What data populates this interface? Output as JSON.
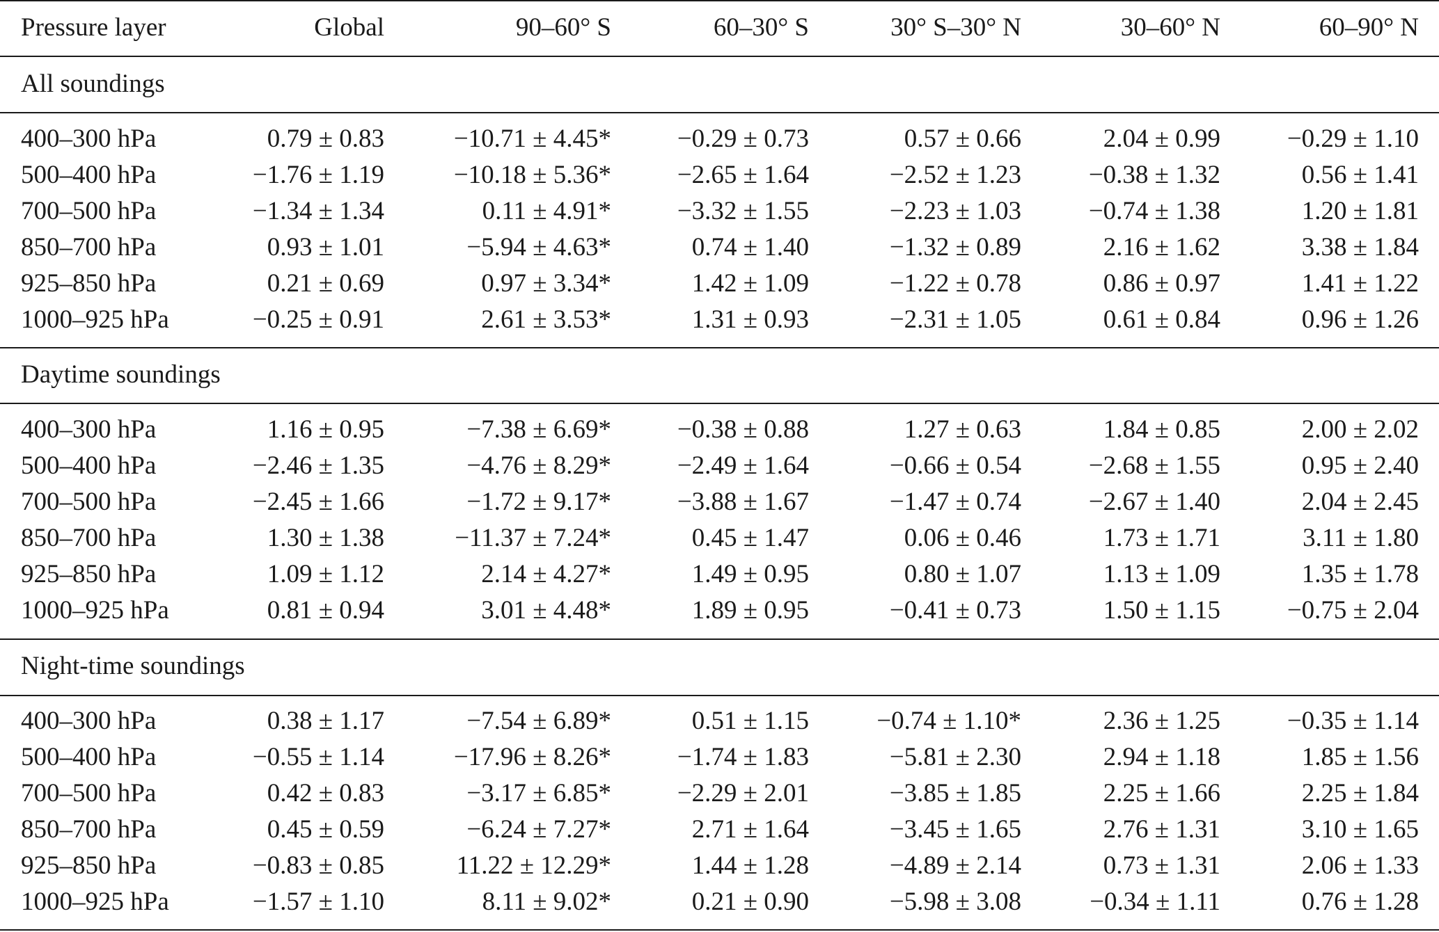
{
  "table": {
    "headers": [
      "Pressure layer",
      "Global",
      "90–60° S",
      "60–30° S",
      "30° S–30° N",
      "30–60° N",
      "60–90° N"
    ],
    "sections": [
      {
        "title": "All soundings",
        "rows": [
          [
            "400–300 hPa",
            "0.79 ± 0.83",
            "−10.71 ± 4.45*",
            "−0.29 ± 0.73",
            "0.57 ± 0.66",
            "2.04 ± 0.99",
            "−0.29 ± 1.10"
          ],
          [
            "500–400 hPa",
            "−1.76 ± 1.19",
            "−10.18 ± 5.36*",
            "−2.65 ± 1.64",
            "−2.52 ± 1.23",
            "−0.38 ± 1.32",
            "0.56 ± 1.41"
          ],
          [
            "700–500 hPa",
            "−1.34 ± 1.34",
            "0.11 ± 4.91*",
            "−3.32 ± 1.55",
            "−2.23 ± 1.03",
            "−0.74 ± 1.38",
            "1.20 ± 1.81"
          ],
          [
            "850–700 hPa",
            "0.93 ± 1.01",
            "−5.94 ± 4.63*",
            "0.74 ± 1.40",
            "−1.32 ± 0.89",
            "2.16 ± 1.62",
            "3.38 ± 1.84"
          ],
          [
            "925–850 hPa",
            "0.21 ± 0.69",
            "0.97 ± 3.34*",
            "1.42 ± 1.09",
            "−1.22 ± 0.78",
            "0.86 ± 0.97",
            "1.41 ± 1.22"
          ],
          [
            "1000–925 hPa",
            "−0.25 ± 0.91",
            "2.61 ± 3.53*",
            "1.31 ± 0.93",
            "−2.31 ± 1.05",
            "0.61 ± 0.84",
            "0.96 ± 1.26"
          ]
        ]
      },
      {
        "title": "Daytime soundings",
        "rows": [
          [
            "400–300 hPa",
            "1.16 ± 0.95",
            "−7.38 ± 6.69*",
            "−0.38 ± 0.88",
            "1.27 ± 0.63",
            "1.84 ± 0.85",
            "2.00 ± 2.02"
          ],
          [
            "500–400 hPa",
            "−2.46 ± 1.35",
            "−4.76 ± 8.29*",
            "−2.49 ± 1.64",
            "−0.66 ± 0.54",
            "−2.68 ± 1.55",
            "0.95 ± 2.40"
          ],
          [
            "700–500 hPa",
            "−2.45 ± 1.66",
            "−1.72 ± 9.17*",
            "−3.88 ± 1.67",
            "−1.47 ± 0.74",
            "−2.67 ± 1.40",
            "2.04 ± 2.45"
          ],
          [
            "850–700 hPa",
            "1.30 ± 1.38",
            "−11.37 ± 7.24*",
            "0.45 ± 1.47",
            "0.06 ± 0.46",
            "1.73 ± 1.71",
            "3.11 ± 1.80"
          ],
          [
            "925–850 hPa",
            "1.09 ± 1.12",
            "2.14 ± 4.27*",
            "1.49 ± 0.95",
            "0.80 ± 1.07",
            "1.13 ± 1.09",
            "1.35 ± 1.78"
          ],
          [
            "1000–925 hPa",
            "0.81 ± 0.94",
            "3.01 ± 4.48*",
            "1.89 ± 0.95",
            "−0.41 ± 0.73",
            "1.50 ± 1.15",
            "−0.75 ± 2.04"
          ]
        ]
      },
      {
        "title": "Night-time soundings",
        "rows": [
          [
            "400–300 hPa",
            "0.38 ± 1.17",
            "−7.54 ± 6.89*",
            "0.51 ± 1.15",
            "−0.74 ± 1.10*",
            "2.36 ± 1.25",
            "−0.35 ± 1.14"
          ],
          [
            "500–400 hPa",
            "−0.55 ± 1.14",
            "−17.96 ± 8.26*",
            "−1.74 ± 1.83",
            "−5.81 ± 2.30",
            "2.94 ± 1.18",
            "1.85 ± 1.56"
          ],
          [
            "700–500 hPa",
            "0.42 ± 0.83",
            "−3.17 ± 6.85*",
            "−2.29 ± 2.01",
            "−3.85 ± 1.85",
            "2.25 ± 1.66",
            "2.25 ± 1.84"
          ],
          [
            "850–700 hPa",
            "0.45 ± 0.59",
            "−6.24 ± 7.27*",
            "2.71 ± 1.64",
            "−3.45 ± 1.65",
            "2.76 ± 1.31",
            "3.10 ± 1.65"
          ],
          [
            "925–850 hPa",
            "−0.83 ± 0.85",
            "11.22 ± 12.29*",
            "1.44 ± 1.28",
            "−4.89 ± 2.14",
            "0.73 ± 1.31",
            "2.06 ± 1.33"
          ],
          [
            "1000–925 hPa",
            "−1.57 ± 1.10",
            "8.11 ± 9.02*",
            "0.21 ± 0.90",
            "−5.98 ± 3.08",
            "−0.34 ± 1.11",
            "0.76 ± 1.28"
          ]
        ]
      }
    ]
  }
}
